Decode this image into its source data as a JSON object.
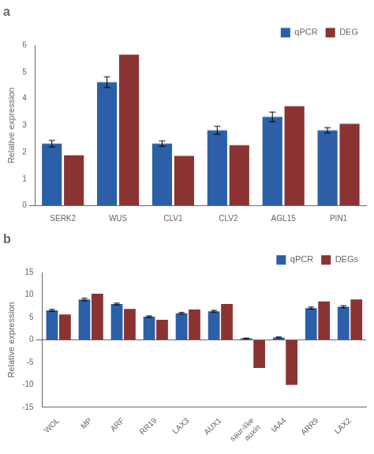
{
  "chart_data": [
    {
      "type": "bar",
      "title": "a",
      "categories": [
        "SERK2",
        "WUS",
        "CLV1",
        "CLV2",
        "AGL15",
        "PIN1"
      ],
      "series": [
        {
          "name": "qPCR",
          "color": "#2B5FA8",
          "values": [
            2.32,
            4.62,
            2.32,
            2.82,
            3.32,
            2.82
          ],
          "errors": [
            0.12,
            0.2,
            0.1,
            0.15,
            0.18,
            0.1
          ]
        },
        {
          "name": "DEG",
          "color": "#8B3333",
          "values": [
            1.88,
            5.65,
            1.86,
            2.26,
            3.72,
            3.06
          ]
        }
      ],
      "ylabel": "Relative expression",
      "ylim": [
        0,
        6
      ],
      "yticks": [
        0,
        1,
        2,
        3,
        4,
        5,
        6
      ],
      "grid": false,
      "legend": "upper right"
    },
    {
      "type": "bar",
      "title": "b",
      "categories": [
        "WOL",
        "MP",
        "ARF",
        "RR19",
        "LAX3",
        "AUX1",
        "saur-like\nauxin",
        "IAA4",
        "ARR9",
        "LAX2"
      ],
      "series": [
        {
          "name": "qPCR",
          "color": "#2B5FA8",
          "values": [
            6.6,
            9.0,
            8.0,
            5.2,
            5.95,
            6.4,
            0.35,
            0.55,
            7.1,
            7.4
          ],
          "errors": [
            0.22,
            0.28,
            0.2,
            0.18,
            0.18,
            0.2,
            0.08,
            0.12,
            0.22,
            0.25
          ]
        },
        {
          "name": "DEGs",
          "color": "#8B3333",
          "values": [
            5.7,
            10.3,
            6.9,
            4.5,
            6.8,
            8.0,
            -6.2,
            -10.0,
            8.6,
            9.0
          ]
        }
      ],
      "ylabel": "Relative expression",
      "ylim": [
        -15,
        15
      ],
      "yticks": [
        -15,
        -10,
        -5,
        0,
        5,
        10,
        15
      ],
      "grid": false,
      "legend": "upper right"
    }
  ]
}
